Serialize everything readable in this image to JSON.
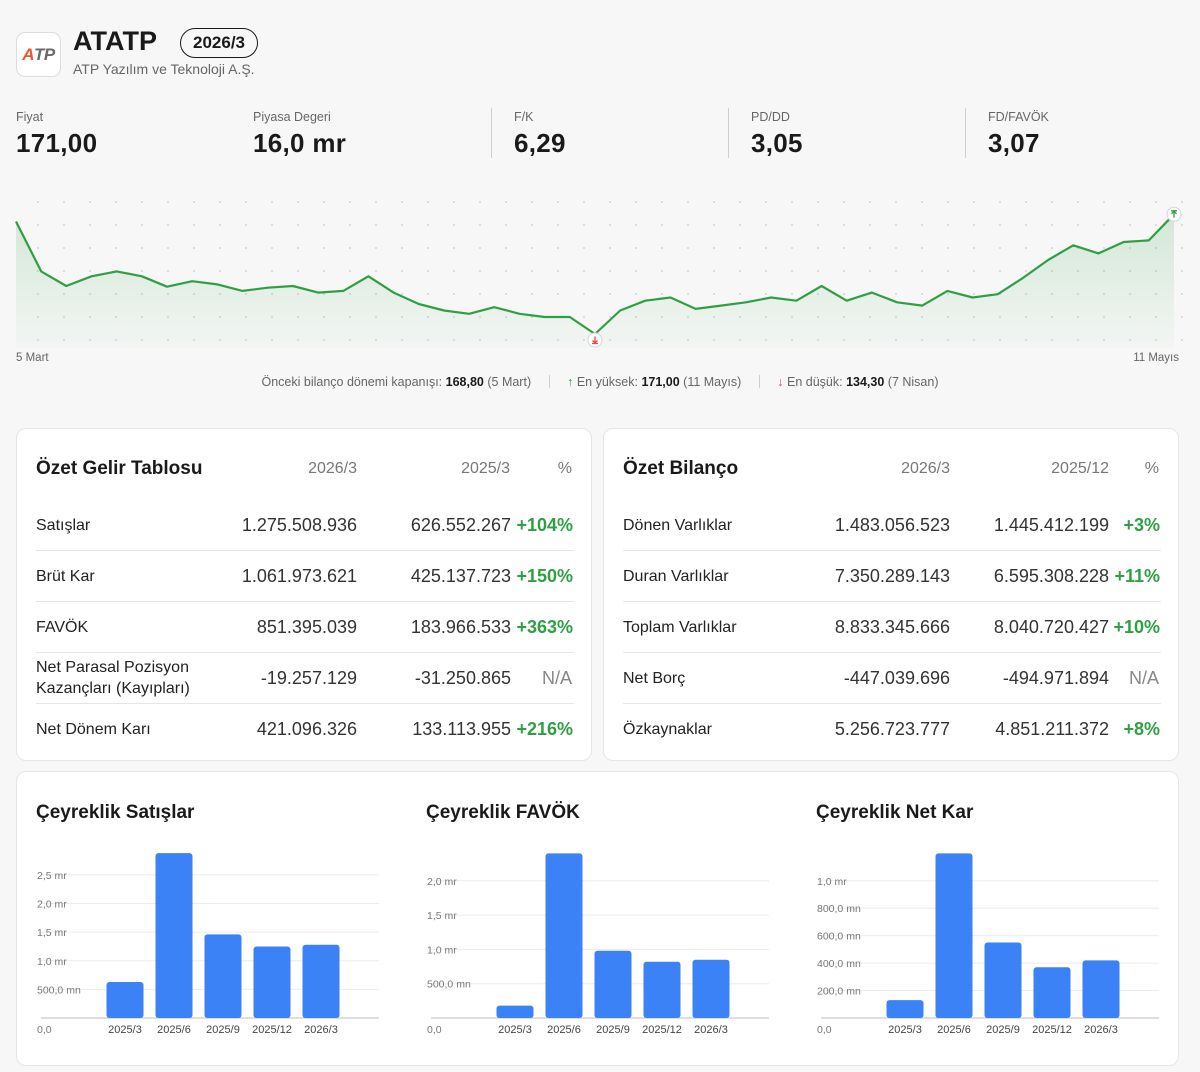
{
  "header": {
    "logo_text_a": "A",
    "logo_text_tp": "TP",
    "ticker": "ATATP",
    "period": "2026/3",
    "company_name": "ATP Yazılım ve Teknoloji A.Ş."
  },
  "metrics": [
    {
      "label": "Fiyat",
      "value": "171,00"
    },
    {
      "label": "Piyasa Degeri",
      "value": "16,0 mr"
    },
    {
      "label": "F/K",
      "value": "6,29"
    },
    {
      "label": "PD/DD",
      "value": "3,05"
    },
    {
      "label": "FD/FAVÖK",
      "value": "3,07"
    }
  ],
  "price_chart": {
    "start_label": "5 Mart",
    "end_label": "11 Mayıs",
    "line_color": "#2ea043",
    "ylim": [
      130,
      176
    ],
    "prices": [
      168.8,
      153.5,
      149.0,
      152.0,
      153.5,
      152.0,
      148.8,
      150.5,
      149.5,
      147.5,
      148.5,
      149.0,
      147.0,
      147.5,
      152.0,
      147.0,
      143.5,
      141.5,
      140.5,
      142.5,
      140.5,
      139.5,
      139.5,
      134.3,
      141.5,
      144.5,
      145.5,
      142.0,
      143.0,
      144.0,
      145.5,
      144.5,
      149.0,
      144.5,
      147.0,
      144.0,
      143.0,
      147.5,
      145.5,
      146.5,
      151.5,
      157.0,
      161.5,
      159.0,
      162.5,
      163.0,
      171.0
    ],
    "summary": {
      "prev_label": "Önceki bilanço dönemi kapanışı:",
      "prev_value": "168,80",
      "prev_date": "(5 Mart)",
      "high_label": "En yüksek:",
      "high_value": "171,00",
      "high_date": "(11 Mayıs)",
      "low_label": "En düşük:",
      "low_value": "134,30",
      "low_date": "(7 Nisan)"
    }
  },
  "income": {
    "title": "Özet Gelir Tablosu",
    "col1": "2026/3",
    "col2": "2025/3",
    "col3": "%",
    "rows": [
      {
        "name": "Satışlar",
        "v1": "1.275.508.936",
        "v2": "626.552.267",
        "pct": "+104%"
      },
      {
        "name": "Brüt Kar",
        "v1": "1.061.973.621",
        "v2": "425.137.723",
        "pct": "+150%"
      },
      {
        "name": "FAVÖK",
        "v1": "851.395.039",
        "v2": "183.966.533",
        "pct": "+363%"
      },
      {
        "name": "Net Parasal Pozisyon Kazançları (Kayıpları)",
        "v1": "-19.257.129",
        "v2": "-31.250.865",
        "pct": "N/A"
      },
      {
        "name": "Net Dönem Karı",
        "v1": "421.096.326",
        "v2": "133.113.955",
        "pct": "+216%"
      }
    ]
  },
  "balance": {
    "title": "Özet Bilanço",
    "col1": "2026/3",
    "col2": "2025/12",
    "col3": "%",
    "rows": [
      {
        "name": "Dönen Varlıklar",
        "v1": "1.483.056.523",
        "v2": "1.445.412.199",
        "pct": "+3%"
      },
      {
        "name": "Duran Varlıklar",
        "v1": "7.350.289.143",
        "v2": "6.595.308.228",
        "pct": "+11%"
      },
      {
        "name": "Toplam Varlıklar",
        "v1": "8.833.345.666",
        "v2": "8.040.720.427",
        "pct": "+10%"
      },
      {
        "name": "Net Borç",
        "v1": "-447.039.696",
        "v2": "-494.971.894",
        "pct": "N/A"
      },
      {
        "name": "Özkaynaklar",
        "v1": "5.256.723.777",
        "v2": "4.851.211.372",
        "pct": "+8%"
      }
    ]
  },
  "chart_data": [
    {
      "type": "bar",
      "title": "Çeyreklik Satışlar",
      "categories": [
        "2025/3",
        "2025/6",
        "2025/9",
        "2025/12",
        "2026/3"
      ],
      "values": [
        0.63,
        2.88,
        1.46,
        1.25,
        1.28
      ],
      "unit": "mr",
      "yticks": [
        0,
        0.5,
        1.0,
        1.5,
        2.0,
        2.5
      ],
      "ytick_labels": [
        "0,0",
        "500,0 mn",
        "1,0 mr",
        "1,5 mr",
        "2,0 mr",
        "2,5 mr"
      ],
      "ylim": [
        0,
        2.9
      ],
      "color": "#3b82f6"
    },
    {
      "type": "bar",
      "title": "Çeyreklik FAVÖK",
      "categories": [
        "2025/3",
        "2025/6",
        "2025/9",
        "2025/12",
        "2026/3"
      ],
      "values": [
        0.18,
        2.4,
        0.98,
        0.82,
        0.85
      ],
      "unit": "mr",
      "yticks": [
        0,
        0.5,
        1.0,
        1.5,
        2.0
      ],
      "ytick_labels": [
        "0,0",
        "500,0 mn",
        "1,0 mr",
        "1,5 mr",
        "2,0 mr"
      ],
      "ylim": [
        0,
        2.42
      ],
      "color": "#3b82f6"
    },
    {
      "type": "bar",
      "title": "Çeyreklik Net Kar",
      "categories": [
        "2025/3",
        "2025/6",
        "2025/9",
        "2025/12",
        "2026/3"
      ],
      "values": [
        0.13,
        1.2,
        0.55,
        0.37,
        0.42
      ],
      "unit": "mr",
      "yticks": [
        0,
        0.2,
        0.4,
        0.6,
        0.8,
        1.0
      ],
      "ytick_labels": [
        "0,0",
        "200,0 mn",
        "400,0 mn",
        "600,0 mn",
        "800,0 mn",
        "1,0 mr"
      ],
      "ylim": [
        0,
        1.21
      ],
      "color": "#3b82f6"
    }
  ]
}
